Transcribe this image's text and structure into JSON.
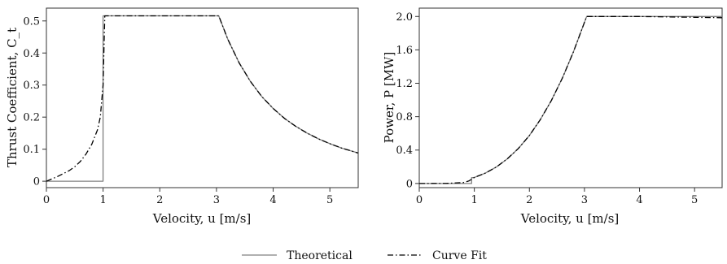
{
  "chart_data": [
    {
      "type": "line",
      "xlabel": "Velocity, u [m/s]",
      "ylabel": "Thrust Coefficient, C_t",
      "xlim": [
        0,
        5.5
      ],
      "ylim": [
        -0.02,
        0.54
      ],
      "xticks": [
        0,
        1,
        2,
        3,
        4,
        5
      ],
      "xtick_labels": [
        "0",
        "1",
        "2",
        "3",
        "4",
        "5"
      ],
      "yticks": [
        0,
        0.1,
        0.2,
        0.3,
        0.4,
        0.5
      ],
      "ytick_labels": [
        "0",
        "0.1",
        "0.2",
        "0.3",
        "0.4",
        "0.5"
      ],
      "grid": false,
      "series": [
        {
          "name": "Theoretical",
          "style": "solid",
          "color": "#808080",
          "x": [
            0,
            1.0,
            1.0,
            1.5,
            2.0,
            2.5,
            3.04,
            3.2,
            3.4,
            3.6,
            3.8,
            4.0,
            4.2,
            4.4,
            4.6,
            4.8,
            5.0,
            5.2,
            5.5
          ],
          "y": [
            0,
            0,
            0.516,
            0.516,
            0.516,
            0.516,
            0.516,
            0.443,
            0.369,
            0.311,
            0.264,
            0.227,
            0.196,
            0.171,
            0.15,
            0.132,
            0.117,
            0.104,
            0.088
          ]
        },
        {
          "name": "Curve Fit",
          "style": "dashdot",
          "color": "#000000",
          "x": [
            0,
            0.2,
            0.4,
            0.5,
            0.6,
            0.7,
            0.8,
            0.9,
            0.95,
            1.0,
            1.03,
            1.5,
            2.0,
            2.5,
            3.04,
            3.2,
            3.4,
            3.6,
            3.8,
            4.0,
            4.2,
            4.4,
            4.6,
            4.8,
            5.0,
            5.2,
            5.5
          ],
          "y": [
            0,
            0.015,
            0.033,
            0.045,
            0.062,
            0.085,
            0.115,
            0.16,
            0.2,
            0.3,
            0.516,
            0.516,
            0.516,
            0.516,
            0.516,
            0.443,
            0.369,
            0.311,
            0.264,
            0.227,
            0.196,
            0.171,
            0.15,
            0.132,
            0.117,
            0.104,
            0.088
          ]
        }
      ]
    },
    {
      "type": "line",
      "xlabel": "Velocity, u [m/s]",
      "ylabel": "Power, P [MW]",
      "xlim": [
        0,
        5.5
      ],
      "ylim": [
        -0.05,
        2.1
      ],
      "xticks": [
        0,
        1,
        2,
        3,
        4,
        5
      ],
      "xtick_labels": [
        "0",
        "1",
        "2",
        "3",
        "4",
        "5"
      ],
      "yticks": [
        0,
        0.4,
        0.8,
        1.2,
        1.6,
        2.0
      ],
      "ytick_labels": [
        "0",
        "0.4",
        "0.8",
        "1.2",
        "1.6",
        "2.0"
      ],
      "grid": false,
      "series": [
        {
          "name": "Theoretical",
          "style": "solid",
          "color": "#808080",
          "x": [
            0,
            0.95,
            0.95,
            1.0,
            1.0,
            1.2,
            1.4,
            1.6,
            1.8,
            2.0,
            2.2,
            2.4,
            2.6,
            2.8,
            3.04,
            3.5,
            4.0,
            4.5,
            5.0,
            5.5
          ],
          "y": [
            0,
            0,
            0.07,
            0.07,
            0.072,
            0.124,
            0.197,
            0.295,
            0.419,
            0.575,
            0.766,
            0.994,
            1.264,
            1.578,
            2.0,
            2.0,
            2.0,
            2.0,
            2.0,
            2.0
          ]
        },
        {
          "name": "Curve Fit",
          "style": "dashdot",
          "color": "#000000",
          "x": [
            0,
            0.5,
            0.8,
            0.9,
            1.0,
            1.2,
            1.4,
            1.6,
            1.8,
            2.0,
            2.2,
            2.4,
            2.6,
            2.8,
            3.04,
            3.5,
            4.0,
            4.5,
            5.0,
            5.5
          ],
          "y": [
            0,
            0.002,
            0.01,
            0.03,
            0.072,
            0.124,
            0.197,
            0.295,
            0.419,
            0.575,
            0.766,
            0.994,
            1.264,
            1.578,
            2.0,
            2.0,
            2.0,
            1.995,
            1.99,
            1.985
          ]
        }
      ]
    }
  ],
  "legend": {
    "placement": "bottom-center",
    "entries": [
      "Theoretical",
      "Curve Fit"
    ]
  }
}
